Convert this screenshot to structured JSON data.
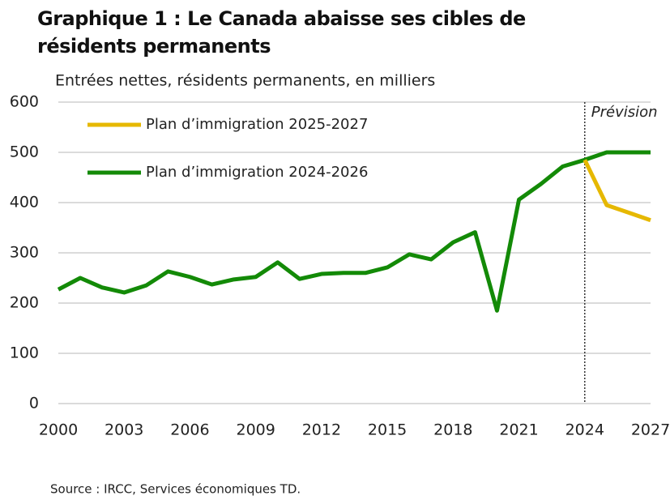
{
  "chart_data": {
    "type": "line",
    "title": "Graphique 1 : Le Canada abaisse ses cibles de résidents permanents",
    "subtitle": "Entrées nettes, résidents permanents, en milliers",
    "source": "Source : IRCC, Services économiques TD.",
    "x": [
      2000,
      2001,
      2002,
      2003,
      2004,
      2005,
      2006,
      2007,
      2008,
      2009,
      2010,
      2011,
      2012,
      2013,
      2014,
      2015,
      2016,
      2017,
      2018,
      2019,
      2020,
      2021,
      2022,
      2023,
      2024,
      2025,
      2026,
      2027
    ],
    "series": [
      {
        "name": "Plan d’immigration 2025-2027",
        "color": "#e6b800",
        "values": [
          null,
          null,
          null,
          null,
          null,
          null,
          null,
          null,
          null,
          null,
          null,
          null,
          null,
          null,
          null,
          null,
          null,
          null,
          null,
          null,
          null,
          null,
          null,
          null,
          485,
          395,
          380,
          365
        ]
      },
      {
        "name": "Plan d’immigration 2024-2026",
        "color": "#138a07",
        "values": [
          227,
          250,
          231,
          221,
          235,
          263,
          252,
          237,
          247,
          252,
          281,
          248,
          258,
          260,
          260,
          271,
          297,
          287,
          321,
          341,
          185,
          406,
          437,
          472,
          485,
          500,
          500,
          500
        ]
      }
    ],
    "xlim": [
      2000,
      2027
    ],
    "xticks": [
      2000,
      2003,
      2006,
      2009,
      2012,
      2015,
      2018,
      2021,
      2024,
      2027
    ],
    "ylim": [
      0,
      600
    ],
    "yticks": [
      0,
      100,
      200,
      300,
      400,
      500,
      600
    ],
    "grid": true,
    "legend": "top-left",
    "annotation": {
      "x": 2024,
      "label": "Prévision"
    }
  }
}
